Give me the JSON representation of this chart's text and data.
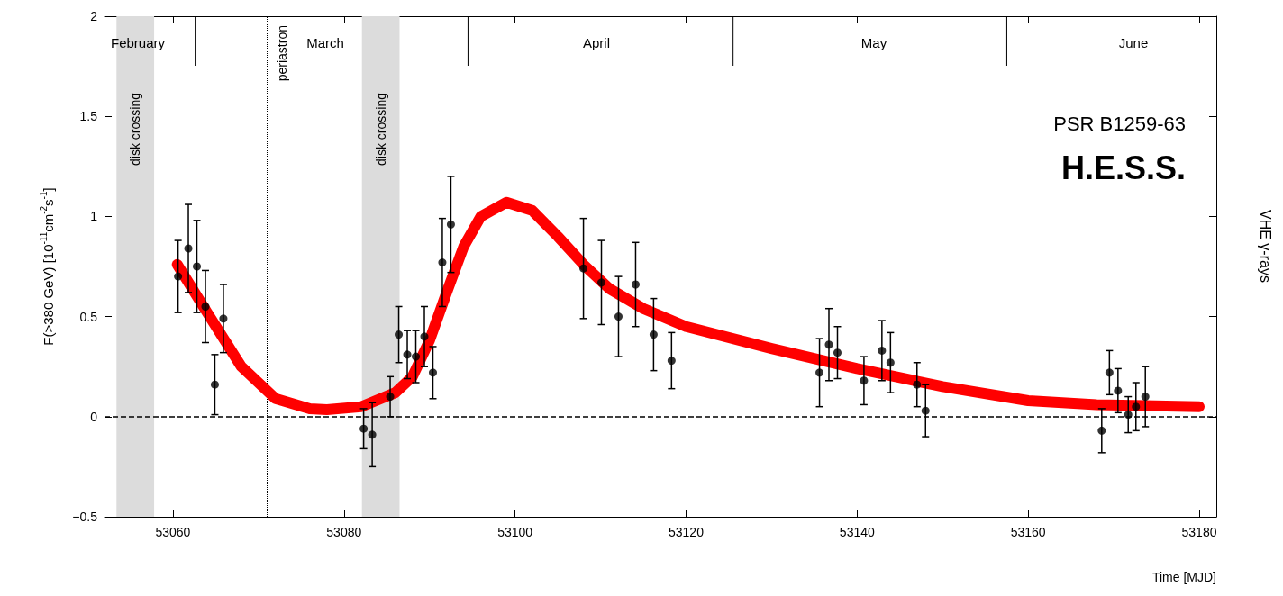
{
  "chart_data": {
    "type": "scatter",
    "xlabel": "Time [MJD]",
    "ylabel": "F(>380 GeV) [10$^{-11}$cm$^{-2}$s$^{-1}$]",
    "xlim": [
      53052,
      53182
    ],
    "xticks": [
      53060,
      53080,
      53100,
      53120,
      53140,
      53160,
      53180
    ],
    "ylim": [
      -0.5,
      2
    ],
    "yticks": [
      -0.5,
      0,
      0.5,
      1,
      1.5,
      2
    ],
    "grid": false,
    "series": [
      {
        "color": "#000000",
        "marker": "circle",
        "x": [
          53060.6,
          53061.8,
          53062.8,
          53063.8,
          53064.9,
          53065.9,
          53082.3,
          53083.3,
          53085.4,
          53086.4,
          53087.4,
          53088.4,
          53089.4,
          53090.4,
          53091.5,
          53092.5,
          53108.0,
          53110.1,
          53112.1,
          53114.1,
          53116.2,
          53118.3,
          53135.6,
          53136.7,
          53137.7,
          53140.8,
          53142.9,
          53143.9,
          53147.0,
          53148.0,
          53168.6,
          53169.5,
          53170.5,
          53171.7,
          53172.6,
          53173.7
        ],
        "values": [
          0.7,
          0.84,
          0.75,
          0.55,
          0.16,
          0.49,
          -0.06,
          -0.09,
          0.1,
          0.41,
          0.31,
          0.3,
          0.4,
          0.22,
          0.77,
          0.96,
          0.74,
          0.67,
          0.5,
          0.66,
          0.41,
          0.28,
          0.22,
          0.36,
          0.32,
          0.18,
          0.33,
          0.27,
          0.16,
          0.03,
          -0.07,
          0.22,
          0.13,
          0.01,
          0.05,
          0.1
        ],
        "errors": [
          0.18,
          0.22,
          0.23,
          0.18,
          0.15,
          0.17,
          0.1,
          0.16,
          0.1,
          0.14,
          0.12,
          0.13,
          0.15,
          0.13,
          0.22,
          0.24,
          0.25,
          0.21,
          0.2,
          0.21,
          0.18,
          0.14,
          0.17,
          0.18,
          0.13,
          0.12,
          0.15,
          0.15,
          0.11,
          0.13,
          0.11,
          0.11,
          0.11,
          0.09,
          0.12,
          0.15
        ]
      },
      {
        "type": "line",
        "color": "#ff0000",
        "line_style": "solid",
        "marker": "none",
        "x": [
          53060.5,
          53064,
          53068,
          53072,
          53076,
          53078,
          53082,
          53086,
          53088,
          53090,
          53092,
          53094,
          53096,
          53099,
          53102,
          53105,
          53108,
          53111,
          53115,
          53120,
          53130,
          53140,
          53150,
          53160,
          53168,
          53180
        ],
        "values": [
          0.76,
          0.52,
          0.25,
          0.09,
          0.04,
          0.035,
          0.05,
          0.12,
          0.2,
          0.38,
          0.62,
          0.85,
          1.0,
          1.07,
          1.03,
          0.9,
          0.76,
          0.64,
          0.54,
          0.45,
          0.34,
          0.24,
          0.15,
          0.08,
          0.06,
          0.05
        ]
      }
    ],
    "ref_lines": [
      {
        "axis": "y",
        "value": 0,
        "label": null,
        "color": "#000000",
        "line_style": "dashed"
      },
      {
        "axis": "x",
        "value": 53071,
        "label": "periastron",
        "color": "#000000",
        "line_style": "dotted"
      },
      {
        "axis": "x",
        "value": 53062.6,
        "label": null,
        "color": "#000000",
        "line_style": "solid"
      },
      {
        "axis": "x",
        "value": 53094.5,
        "label": null,
        "color": "#000000",
        "line_style": "solid"
      },
      {
        "axis": "x",
        "value": 53125.5,
        "label": null,
        "color": "#000000",
        "line_style": "solid"
      },
      {
        "axis": "x",
        "value": 53157.5,
        "label": null,
        "color": "#000000",
        "line_style": "solid"
      }
    ],
    "bands": [
      {
        "axis": "x",
        "from": 53053.4,
        "to": 53057.8,
        "label": "disk crossing",
        "color": "#dcdcdc"
      },
      {
        "axis": "x",
        "from": 53082.1,
        "to": 53086.5,
        "label": "disk crossing",
        "color": "#dcdcdc"
      }
    ],
    "annotations": [
      "PSR B1259-63",
      "H.E.S.S.",
      "VHE γ-rays",
      "February",
      "March",
      "April",
      "May",
      "June"
    ]
  }
}
